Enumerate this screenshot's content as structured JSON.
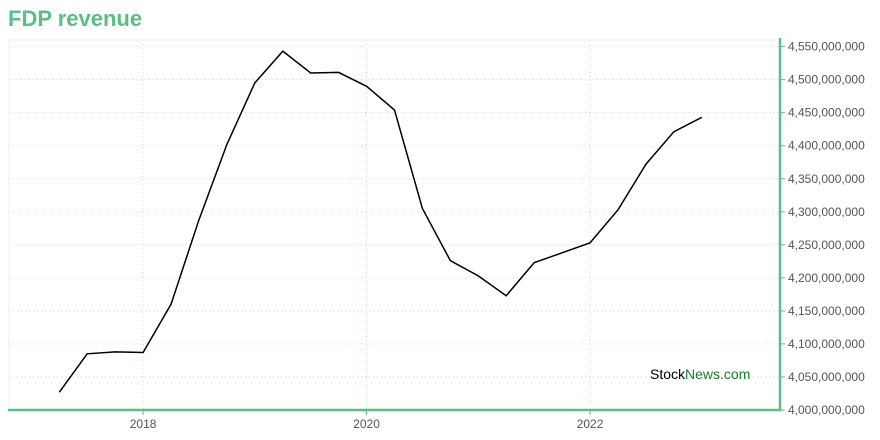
{
  "title": "FDP revenue",
  "watermark": {
    "part1": "Stock",
    "part2": "News.com"
  },
  "colors": {
    "accent": "#5bbf85",
    "line": "#000000",
    "grid": "#b7e3c8"
  },
  "chart_data": {
    "type": "line",
    "title": "FDP revenue",
    "xlabel": "",
    "ylabel": "",
    "xlim": [
      2016.8,
      2023.7
    ],
    "ylim": [
      4000000000,
      4560000000
    ],
    "grid": true,
    "x_ticks": [
      2018,
      2020,
      2022
    ],
    "x_tick_labels": [
      "2018",
      "2020",
      "2022"
    ],
    "y_ticks": [
      4000000000,
      4050000000,
      4100000000,
      4150000000,
      4200000000,
      4250000000,
      4300000000,
      4350000000,
      4400000000,
      4450000000,
      4500000000,
      4550000000
    ],
    "y_tick_labels": [
      "4,000,000,000",
      "4,050,000,000",
      "4,100,000,000",
      "4,150,000,000",
      "4,200,000,000",
      "4,250,000,000",
      "4,300,000,000",
      "4,350,000,000",
      "4,400,000,000",
      "4,450,000,000",
      "4,500,000,000",
      "4,550,000,000"
    ],
    "series": [
      {
        "x": [
          2017.25,
          2017.5,
          2017.75,
          2018.0,
          2018.25,
          2018.5,
          2018.75,
          2019.0,
          2019.25,
          2019.5,
          2019.75,
          2020.0,
          2020.25,
          2020.5,
          2020.75,
          2021.0,
          2021.25,
          2021.5,
          2021.75,
          2022.0,
          2022.25,
          2022.5,
          2022.75,
          2023.0
        ],
        "y": [
          4027000000,
          4085000000,
          4088000000,
          4087000000,
          4160000000,
          4288000000,
          4402000000,
          4495000000,
          4543000000,
          4510000000,
          4511000000,
          4490000000,
          4454000000,
          4305000000,
          4226000000,
          4203000000,
          4173000000,
          4223000000,
          4238000000,
          4253000000,
          4303000000,
          4372000000,
          4421000000,
          4443000000
        ]
      }
    ]
  }
}
